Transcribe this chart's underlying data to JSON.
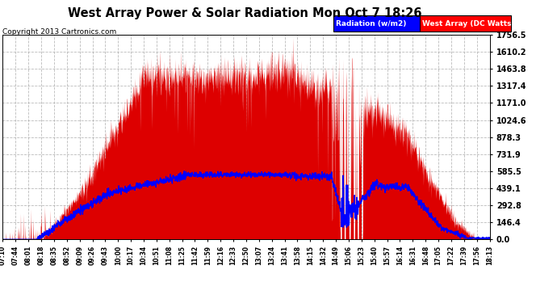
{
  "title": "West Array Power & Solar Radiation Mon Oct 7 18:26",
  "copyright": "Copyright 2013 Cartronics.com",
  "legend_labels": [
    "Radiation (w/m2)",
    "West Array (DC Watts)"
  ],
  "y_max": 1756.5,
  "y_min": 0.0,
  "y_ticks": [
    0.0,
    146.4,
    292.8,
    439.1,
    585.5,
    731.9,
    878.3,
    1024.6,
    1171.0,
    1317.4,
    1463.8,
    1610.2,
    1756.5
  ],
  "background_color": "#ffffff",
  "plot_bg_color": "#ffffff",
  "grid_color": "#aaaaaa",
  "x_tick_labels": [
    "07:10",
    "07:44",
    "08:01",
    "08:18",
    "08:35",
    "08:52",
    "09:09",
    "09:26",
    "09:43",
    "10:00",
    "10:17",
    "10:34",
    "10:51",
    "11:08",
    "11:25",
    "11:42",
    "11:59",
    "12:16",
    "12:33",
    "12:50",
    "13:07",
    "13:24",
    "13:41",
    "13:58",
    "14:15",
    "14:32",
    "14:49",
    "15:06",
    "15:23",
    "15:40",
    "15:57",
    "16:14",
    "16:31",
    "16:48",
    "17:05",
    "17:22",
    "17:39",
    "17:56",
    "18:13"
  ],
  "area_color": "#dd0000",
  "line_color": "#0000ff",
  "line_width": 1.0,
  "n_points": 2000,
  "pv_max_watts": 1700,
  "radiation_max": 590
}
